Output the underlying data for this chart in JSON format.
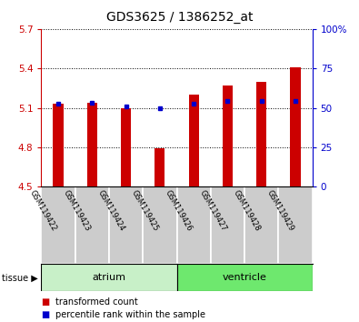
{
  "title": "GDS3625 / 1386252_at",
  "samples": [
    "GSM119422",
    "GSM119423",
    "GSM119424",
    "GSM119425",
    "GSM119426",
    "GSM119427",
    "GSM119428",
    "GSM119429"
  ],
  "red_values": [
    5.13,
    5.14,
    5.1,
    4.79,
    5.2,
    5.27,
    5.3,
    5.41
  ],
  "blue_values": [
    5.13,
    5.14,
    5.11,
    5.1,
    5.135,
    5.155,
    5.155,
    5.155
  ],
  "ymin": 4.5,
  "ymax": 5.7,
  "y_ticks_left": [
    4.5,
    4.8,
    5.1,
    5.4,
    5.7
  ],
  "y_ticks_right_pct": [
    0,
    25,
    50,
    75,
    100
  ],
  "y_ticks_right_labels": [
    "0",
    "25",
    "50",
    "75",
    "100%"
  ],
  "groups": [
    {
      "label": "atrium",
      "start": 0,
      "end": 4,
      "color": "#c8f0c8"
    },
    {
      "label": "ventricle",
      "start": 4,
      "end": 8,
      "color": "#6ee86e"
    }
  ],
  "tissue_label": "tissue",
  "legend": [
    {
      "label": "transformed count",
      "color": "#cc0000"
    },
    {
      "label": "percentile rank within the sample",
      "color": "#0000cc"
    }
  ],
  "bar_color": "#cc0000",
  "dot_color": "#0000cc",
  "axis_color_left": "#cc0000",
  "axis_color_right": "#0000cc",
  "bg_color": "#ffffff",
  "sample_bg": "#cccccc",
  "bar_width": 0.3
}
